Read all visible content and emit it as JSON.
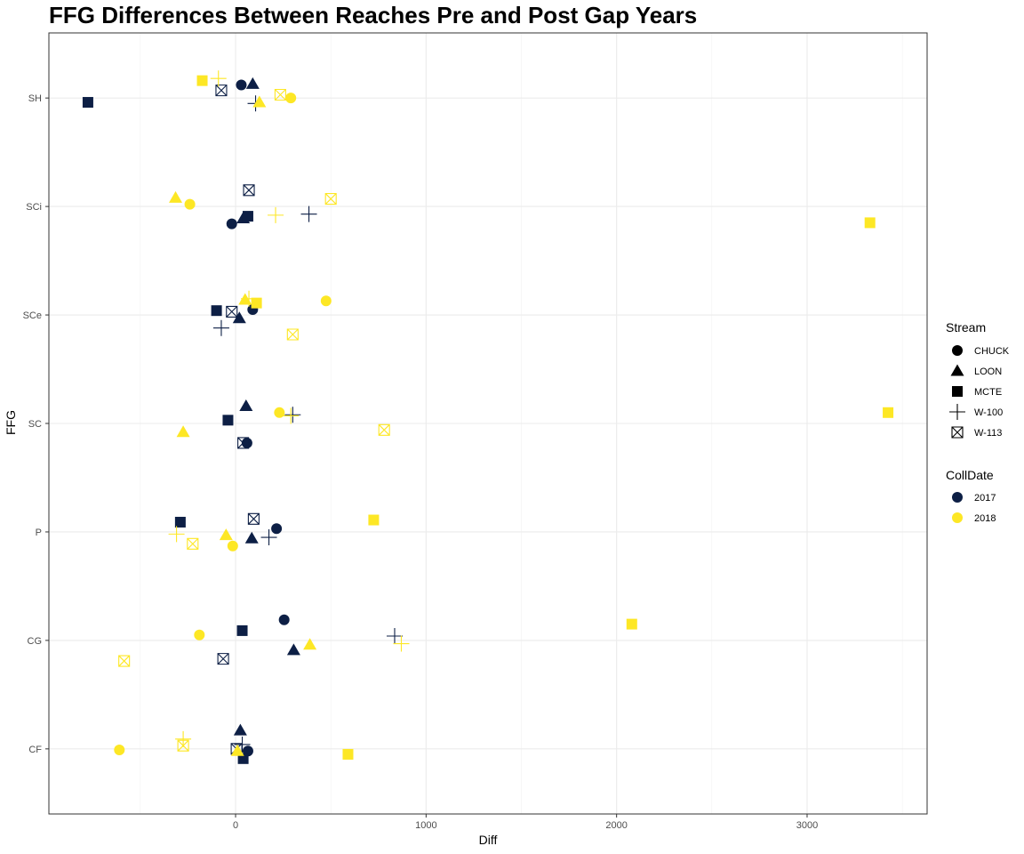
{
  "chart_data": {
    "type": "scatter",
    "title": "FFG Differences Between Reaches Pre and Post Gap Years",
    "xlabel": "Diff",
    "ylabel": "FFG",
    "xlim": [
      -980,
      3630
    ],
    "x_ticks": [
      0,
      1000,
      2000,
      3000
    ],
    "x_tick_labels": [
      "0",
      "1000",
      "2000",
      "3000"
    ],
    "categories": [
      "CF",
      "CG",
      "P",
      "SC",
      "SCe",
      "SCi",
      "SH"
    ],
    "grid": true,
    "legend_position": "right",
    "legend": {
      "shape_title": "Stream",
      "shape_entries": [
        {
          "label": "CHUCK",
          "shape": "circle"
        },
        {
          "label": "LOON",
          "shape": "triangle"
        },
        {
          "label": "MCTE",
          "shape": "square"
        },
        {
          "label": "W-100",
          "shape": "plus"
        },
        {
          "label": "W-113",
          "shape": "boxx"
        }
      ],
      "color_title": "CollDate",
      "color_entries": [
        {
          "label": "2017",
          "color": "#0d1f45"
        },
        {
          "label": "2018",
          "color": "#fde725"
        }
      ]
    },
    "points": [
      {
        "ffg": "SH",
        "stream": "CHUCK",
        "year": "2017",
        "x": 30,
        "jitter": 0.12
      },
      {
        "ffg": "SH",
        "stream": "LOON",
        "year": "2017",
        "x": 90,
        "jitter": 0.13
      },
      {
        "ffg": "SH",
        "stream": "MCTE",
        "year": "2017",
        "x": -775,
        "jitter": -0.04
      },
      {
        "ffg": "SH",
        "stream": "W-100",
        "year": "2017",
        "x": 105,
        "jitter": -0.05
      },
      {
        "ffg": "SH",
        "stream": "W-113",
        "year": "2017",
        "x": -75,
        "jitter": 0.07
      },
      {
        "ffg": "SH",
        "stream": "CHUCK",
        "year": "2018",
        "x": 290,
        "jitter": 0.0
      },
      {
        "ffg": "SH",
        "stream": "LOON",
        "year": "2018",
        "x": 125,
        "jitter": -0.04
      },
      {
        "ffg": "SH",
        "stream": "MCTE",
        "year": "2018",
        "x": -175,
        "jitter": 0.16
      },
      {
        "ffg": "SH",
        "stream": "W-100",
        "year": "2018",
        "x": -90,
        "jitter": 0.18
      },
      {
        "ffg": "SH",
        "stream": "W-113",
        "year": "2018",
        "x": 235,
        "jitter": 0.03
      },
      {
        "ffg": "SCi",
        "stream": "CHUCK",
        "year": "2017",
        "x": -20,
        "jitter": -0.16
      },
      {
        "ffg": "SCi",
        "stream": "LOON",
        "year": "2017",
        "x": 40,
        "jitter": -0.11
      },
      {
        "ffg": "SCi",
        "stream": "MCTE",
        "year": "2017",
        "x": 65,
        "jitter": -0.09
      },
      {
        "ffg": "SCi",
        "stream": "W-100",
        "year": "2017",
        "x": 385,
        "jitter": -0.07
      },
      {
        "ffg": "SCi",
        "stream": "W-113",
        "year": "2017",
        "x": 70,
        "jitter": 0.15
      },
      {
        "ffg": "SCi",
        "stream": "CHUCK",
        "year": "2018",
        "x": -240,
        "jitter": 0.02
      },
      {
        "ffg": "SCi",
        "stream": "LOON",
        "year": "2018",
        "x": -315,
        "jitter": 0.08
      },
      {
        "ffg": "SCi",
        "stream": "MCTE",
        "year": "2018",
        "x": 3330,
        "jitter": -0.15
      },
      {
        "ffg": "SCi",
        "stream": "W-100",
        "year": "2018",
        "x": 210,
        "jitter": -0.08
      },
      {
        "ffg": "SCi",
        "stream": "W-113",
        "year": "2018",
        "x": 500,
        "jitter": 0.07
      },
      {
        "ffg": "SCe",
        "stream": "CHUCK",
        "year": "2017",
        "x": 90,
        "jitter": 0.05
      },
      {
        "ffg": "SCe",
        "stream": "LOON",
        "year": "2017",
        "x": 20,
        "jitter": -0.03
      },
      {
        "ffg": "SCe",
        "stream": "MCTE",
        "year": "2017",
        "x": -100,
        "jitter": 0.04
      },
      {
        "ffg": "SCe",
        "stream": "W-100",
        "year": "2017",
        "x": -75,
        "jitter": -0.12
      },
      {
        "ffg": "SCe",
        "stream": "W-113",
        "year": "2017",
        "x": -20,
        "jitter": 0.03
      },
      {
        "ffg": "SCe",
        "stream": "CHUCK",
        "year": "2018",
        "x": 475,
        "jitter": 0.13
      },
      {
        "ffg": "SCe",
        "stream": "LOON",
        "year": "2018",
        "x": 50,
        "jitter": 0.14
      },
      {
        "ffg": "SCe",
        "stream": "MCTE",
        "year": "2018",
        "x": 110,
        "jitter": 0.11
      },
      {
        "ffg": "SCe",
        "stream": "W-100",
        "year": "2018",
        "x": 70,
        "jitter": 0.15
      },
      {
        "ffg": "SCe",
        "stream": "W-113",
        "year": "2018",
        "x": 300,
        "jitter": -0.18
      },
      {
        "ffg": "SC",
        "stream": "CHUCK",
        "year": "2017",
        "x": 60,
        "jitter": -0.18
      },
      {
        "ffg": "SC",
        "stream": "LOON",
        "year": "2017",
        "x": 55,
        "jitter": 0.16
      },
      {
        "ffg": "SC",
        "stream": "MCTE",
        "year": "2017",
        "x": -40,
        "jitter": 0.03
      },
      {
        "ffg": "SC",
        "stream": "W-100",
        "year": "2017",
        "x": 300,
        "jitter": 0.08
      },
      {
        "ffg": "SC",
        "stream": "W-113",
        "year": "2017",
        "x": 40,
        "jitter": -0.18
      },
      {
        "ffg": "SC",
        "stream": "CHUCK",
        "year": "2018",
        "x": 230,
        "jitter": 0.1
      },
      {
        "ffg": "SC",
        "stream": "LOON",
        "year": "2018",
        "x": -275,
        "jitter": -0.08
      },
      {
        "ffg": "SC",
        "stream": "MCTE",
        "year": "2018",
        "x": 3425,
        "jitter": 0.1
      },
      {
        "ffg": "SC",
        "stream": "W-100",
        "year": "2018",
        "x": 290,
        "jitter": 0.07
      },
      {
        "ffg": "SC",
        "stream": "W-113",
        "year": "2018",
        "x": 780,
        "jitter": -0.06
      },
      {
        "ffg": "P",
        "stream": "CHUCK",
        "year": "2017",
        "x": 215,
        "jitter": 0.03
      },
      {
        "ffg": "P",
        "stream": "LOON",
        "year": "2017",
        "x": 85,
        "jitter": -0.06
      },
      {
        "ffg": "P",
        "stream": "MCTE",
        "year": "2017",
        "x": -290,
        "jitter": 0.09
      },
      {
        "ffg": "P",
        "stream": "W-100",
        "year": "2017",
        "x": 175,
        "jitter": -0.05
      },
      {
        "ffg": "P",
        "stream": "W-113",
        "year": "2017",
        "x": 95,
        "jitter": 0.12
      },
      {
        "ffg": "P",
        "stream": "CHUCK",
        "year": "2018",
        "x": -15,
        "jitter": -0.13
      },
      {
        "ffg": "P",
        "stream": "LOON",
        "year": "2018",
        "x": -50,
        "jitter": -0.03
      },
      {
        "ffg": "P",
        "stream": "MCTE",
        "year": "2018",
        "x": 725,
        "jitter": 0.11
      },
      {
        "ffg": "P",
        "stream": "W-100",
        "year": "2018",
        "x": -310,
        "jitter": -0.02
      },
      {
        "ffg": "P",
        "stream": "W-113",
        "year": "2018",
        "x": -225,
        "jitter": -0.11
      },
      {
        "ffg": "CG",
        "stream": "CHUCK",
        "year": "2017",
        "x": 255,
        "jitter": 0.19
      },
      {
        "ffg": "CG",
        "stream": "LOON",
        "year": "2017",
        "x": 305,
        "jitter": -0.09
      },
      {
        "ffg": "CG",
        "stream": "MCTE",
        "year": "2017",
        "x": 35,
        "jitter": 0.09
      },
      {
        "ffg": "CG",
        "stream": "W-100",
        "year": "2017",
        "x": 835,
        "jitter": 0.04
      },
      {
        "ffg": "CG",
        "stream": "W-113",
        "year": "2017",
        "x": -65,
        "jitter": -0.17
      },
      {
        "ffg": "CG",
        "stream": "CHUCK",
        "year": "2018",
        "x": -190,
        "jitter": 0.05
      },
      {
        "ffg": "CG",
        "stream": "LOON",
        "year": "2018",
        "x": 390,
        "jitter": -0.04
      },
      {
        "ffg": "CG",
        "stream": "MCTE",
        "year": "2018",
        "x": 2080,
        "jitter": 0.15
      },
      {
        "ffg": "CG",
        "stream": "W-100",
        "year": "2018",
        "x": 870,
        "jitter": -0.03
      },
      {
        "ffg": "CG",
        "stream": "W-113",
        "year": "2018",
        "x": -585,
        "jitter": -0.19
      },
      {
        "ffg": "CF",
        "stream": "CHUCK",
        "year": "2017",
        "x": 65,
        "jitter": -0.02
      },
      {
        "ffg": "CF",
        "stream": "LOON",
        "year": "2017",
        "x": 25,
        "jitter": 0.17
      },
      {
        "ffg": "CF",
        "stream": "MCTE",
        "year": "2017",
        "x": 40,
        "jitter": -0.09
      },
      {
        "ffg": "CF",
        "stream": "W-100",
        "year": "2017",
        "x": 35,
        "jitter": 0.04
      },
      {
        "ffg": "CF",
        "stream": "W-113",
        "year": "2017",
        "x": 5,
        "jitter": 0.0
      },
      {
        "ffg": "CF",
        "stream": "CHUCK",
        "year": "2018",
        "x": -610,
        "jitter": -0.01
      },
      {
        "ffg": "CF",
        "stream": "LOON",
        "year": "2018",
        "x": 10,
        "jitter": -0.02
      },
      {
        "ffg": "CF",
        "stream": "MCTE",
        "year": "2018",
        "x": 590,
        "jitter": -0.05
      },
      {
        "ffg": "CF",
        "stream": "W-100",
        "year": "2018",
        "x": -275,
        "jitter": 0.09
      },
      {
        "ffg": "CF",
        "stream": "W-113",
        "year": "2018",
        "x": -275,
        "jitter": 0.03
      }
    ]
  }
}
